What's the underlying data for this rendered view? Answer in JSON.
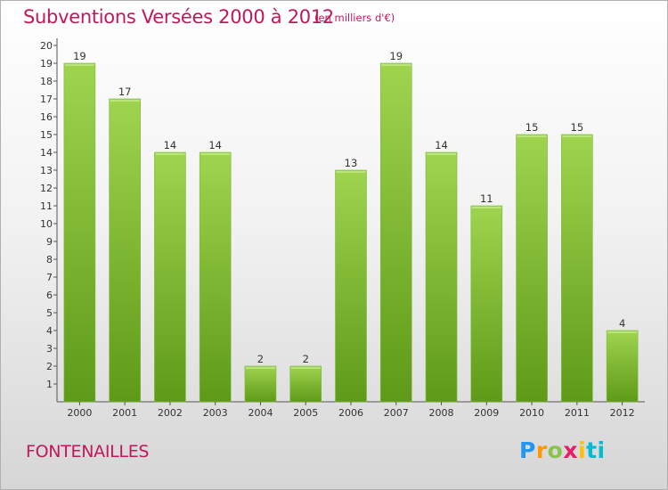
{
  "header": {
    "title": "Subventions Versées 2000 à 2012",
    "subtitle": "(en milliers d'€)"
  },
  "footer": {
    "place": "FONTENAILLES",
    "logo": "Proxiti"
  },
  "colors": {
    "title": "#c2185b",
    "bar_light": "#9fd44f",
    "bar_dark": "#5e9a18",
    "axis": "#555555"
  },
  "chart_data": {
    "type": "bar",
    "title": "Subventions Versées 2000 à 2012",
    "subtitle": "(en milliers d'€)",
    "xlabel": "",
    "ylabel": "",
    "categories": [
      "2000",
      "2001",
      "2002",
      "2003",
      "2004",
      "2005",
      "2006",
      "2007",
      "2008",
      "2009",
      "2010",
      "2011",
      "2012"
    ],
    "values": [
      19,
      17,
      14,
      14,
      2,
      2,
      13,
      19,
      14,
      11,
      15,
      15,
      4
    ],
    "ylim": [
      1,
      20
    ],
    "yticks": [
      "1",
      "2",
      "3",
      "4",
      "5",
      "6",
      "7",
      "8",
      "9",
      "10",
      "11",
      "12",
      "13",
      "14",
      "15",
      "16",
      "17",
      "18",
      "19",
      "20"
    ],
    "grid": false,
    "legend": "none"
  }
}
